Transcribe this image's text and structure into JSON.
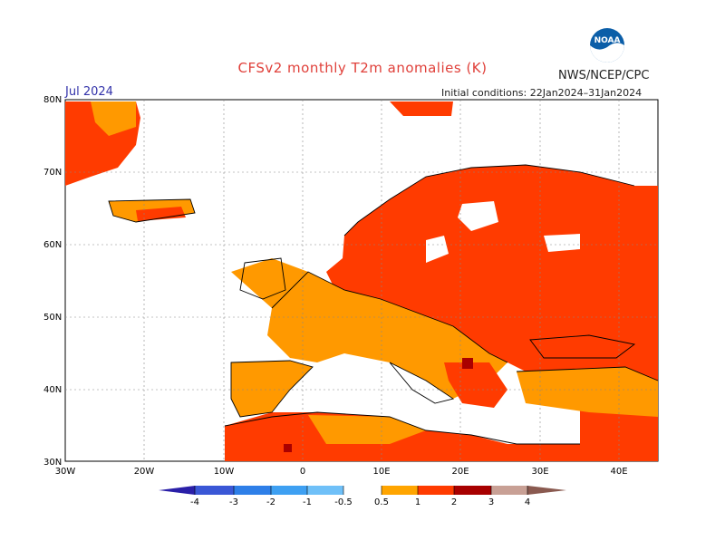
{
  "header": {
    "title": "CFSv2 monthly T2m anomalies (K)",
    "agency": "NWS/NCEP/CPC",
    "month": "Jul 2024",
    "initial_conditions": "Initial conditions: 22Jan2024–31Jan2024",
    "logo_text": "NOAA"
  },
  "map": {
    "lat_ticks": [
      "80N",
      "70N",
      "60N",
      "50N",
      "40N",
      "30N"
    ],
    "lon_ticks": [
      "30W",
      "20W",
      "10W",
      "0",
      "10E",
      "20E",
      "30E",
      "40E"
    ],
    "extent": {
      "lon": [
        -30,
        45
      ],
      "lat": [
        30,
        80
      ]
    },
    "anomaly_class_colors": {
      "0.5-1": "#ff9900",
      "1-2": "#ff3b00",
      "2-3": "#aa0000",
      "bg_white": "#ffffff"
    }
  },
  "colorbar": {
    "labels": [
      "-4",
      "-3",
      "-2",
      "-1",
      "-0.5",
      "0.5",
      "1",
      "2",
      "3",
      "4"
    ],
    "colors": [
      "#2a1fa8",
      "#3a57d6",
      "#2e7fe8",
      "#3ea0f2",
      "#6fc0f8",
      "#ffffff",
      "#ffa500",
      "#ff3b00",
      "#a80000",
      "#c8a095",
      "#8a5a50"
    ]
  }
}
